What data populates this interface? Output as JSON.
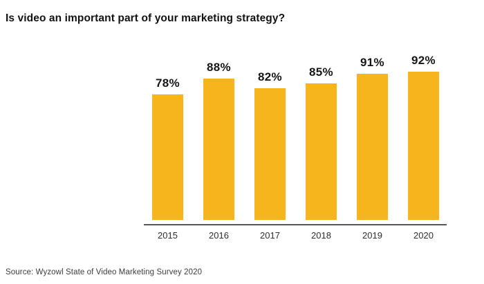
{
  "title": "Is video an important part of your marketing strategy?",
  "source_note": "Source: Wyzowl State of Video Marketing Survey 2020",
  "colors": {
    "bar": "#F6B51D",
    "axis_line": "#565656",
    "title_text": "#121212",
    "value_label_text": "#161616",
    "tick_label_text": "#2e2e2e",
    "source_text": "#3c3c3c",
    "background": "#ffffff"
  },
  "chart_data": {
    "type": "bar",
    "title": "Is video an important part of your marketing strategy?",
    "categories": [
      "2015",
      "2016",
      "2017",
      "2018",
      "2019",
      "2020"
    ],
    "values": [
      78,
      88,
      82,
      85,
      91,
      92
    ],
    "value_labels": [
      "78%",
      "88%",
      "82%",
      "85%",
      "91%",
      "92%"
    ],
    "xlabel": "",
    "ylabel": "",
    "ylim": [
      0,
      100
    ],
    "grid": false,
    "legend": false,
    "bar_color": "#F6B51D",
    "annotation": "Source: Wyzowl State of Video Marketing Survey 2020"
  }
}
